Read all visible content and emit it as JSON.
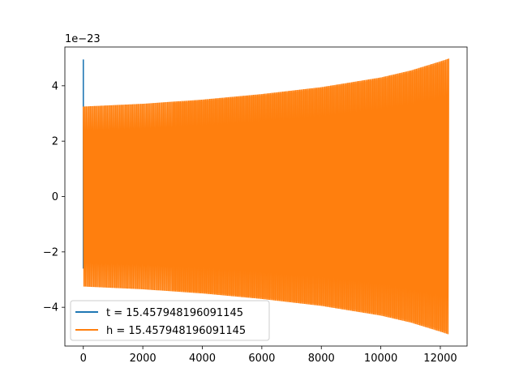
{
  "chart_data": {
    "type": "line",
    "title": "",
    "xlabel": "",
    "ylabel": "",
    "y_offset_text": "1e−23",
    "xlim": [
      -620,
      12900
    ],
    "ylim": [
      -5.4,
      5.4
    ],
    "x_ticks": [
      {
        "value": 0,
        "label": "0"
      },
      {
        "value": 2000,
        "label": "2000"
      },
      {
        "value": 4000,
        "label": "4000"
      },
      {
        "value": 6000,
        "label": "6000"
      },
      {
        "value": 8000,
        "label": "8000"
      },
      {
        "value": 10000,
        "label": "10000"
      },
      {
        "value": 12000,
        "label": "12000"
      }
    ],
    "y_ticks": [
      {
        "value": 4,
        "label": "4"
      },
      {
        "value": 2,
        "label": "2"
      },
      {
        "value": 0,
        "label": "0"
      },
      {
        "value": -2,
        "label": "−2"
      },
      {
        "value": -4,
        "label": "−4"
      }
    ],
    "grid": false,
    "legend_position": "lower-left",
    "series": [
      {
        "name": "t = 15.457948196091145",
        "color": "#1f77b4",
        "description_points": [
          [
            0,
            4.95
          ],
          [
            0,
            -2.6
          ]
        ]
      },
      {
        "name": "h = 15.457948196091145",
        "color": "#ff7f0e",
        "envelope": {
          "x": [
            0,
            2000,
            4000,
            6000,
            8000,
            10000,
            11000,
            12000,
            12280
          ],
          "upper": [
            3.25,
            3.35,
            3.5,
            3.7,
            3.95,
            4.3,
            4.55,
            4.88,
            4.98
          ],
          "lower": [
            -3.25,
            -3.35,
            -3.5,
            -3.7,
            -3.95,
            -4.3,
            -4.55,
            -4.88,
            -4.98
          ]
        },
        "x_end": 12280
      }
    ]
  }
}
